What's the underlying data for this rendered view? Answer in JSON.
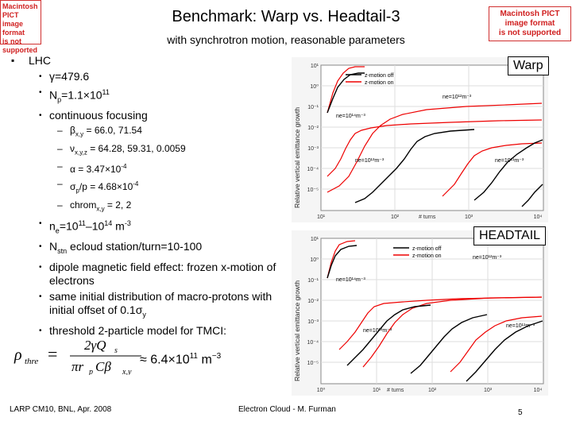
{
  "title": "Benchmark: Warp vs. Headtail-3",
  "subtitle": "with synchrotron motion, reasonable parameters",
  "pict_left": [
    "Macintosh PICT",
    "image format",
    "is not supported"
  ],
  "pict_right": [
    "Macintosh PICT",
    "image format",
    "is not supported"
  ],
  "bullets": {
    "lhc": "LHC",
    "gamma": "γ=479.6",
    "np_prefix": "N",
    "np_sub": "p",
    "np_val": "=1.1×10",
    "np_exp": "11",
    "focusing": "continuous focusing",
    "beta_pre": "β",
    "beta_sub": "x,y",
    "beta_val": " = 66.0, 71.54",
    "nu_pre": "ν",
    "nu_sub": "x,y,z",
    "nu_val": " = 64.28, 59.31, 0.0059",
    "alpha": "α = 3.47×10",
    "alpha_exp": "-4",
    "sigma_pre": "σ",
    "sigma_sub": "p",
    "sigma_val": "/p = 4.68×10",
    "sigma_exp": "-4",
    "chrom_pre": "chrom",
    "chrom_sub": "x,y",
    "chrom_val": " = 2, 2",
    "ne_pre": "n",
    "ne_sub": "e",
    "ne_val": "=10",
    "ne_exp1": "11",
    "ne_dash": "–10",
    "ne_exp2": "14",
    "ne_unit": " m",
    "ne_exp3": "-3",
    "nstn_pre": "N",
    "nstn_sub": "stn",
    "nstn_val": " ecloud station/turn=10-100",
    "dipole": "dipole magnetic field effect: frozen x-motion of electrons",
    "initial_a": "same initial distribution of macro-protons with initial offset of 0.1σ",
    "initial_sub": "y",
    "threshold": "threshold 2-particle model for TMCI:"
  },
  "formula": {
    "lhs": "ρ",
    "lhs_sub": "thre",
    "num": "2γQ",
    "num_sub": "s",
    "den": "πr",
    "den_sub1": "p",
    "den_mid": "Cβ",
    "den_sub2": "x,y",
    "approx": "≈ 6.4×10",
    "approx_exp": "11",
    "approx_unit": " m",
    "approx_unit_exp": "−3"
  },
  "warp_label": "Warp",
  "headtail_label": "HEADTAIL",
  "plots": {
    "ylabel": "Relative vertical emittance growth",
    "xlabel": "# turns",
    "legend_off": "z-motion off",
    "legend_on": "z-motion on",
    "top": {
      "ne_12": "ne=10¹²m⁻³",
      "ne_14": "ne=10¹⁴m⁻³",
      "ne_13": "ne=10¹³m⁻³",
      "ne_11": "ne=10¹¹m⁻³",
      "y_ticks": [
        "10¹",
        "10⁰",
        "10⁻¹",
        "10⁻²",
        "10⁻³",
        "10⁻⁴",
        "10⁻⁵"
      ],
      "x_ticks": [
        "10¹",
        "10²",
        "10³",
        "10⁴"
      ]
    },
    "bottom": {
      "ne_12": "ne=10¹²m⁻³",
      "ne_14": "ne=10¹⁴m⁻³",
      "ne_13": "ne=10¹³m⁻³",
      "ne_11": "ne=10¹¹m⁻³",
      "y_ticks": [
        "10¹",
        "10⁰",
        "10⁻¹",
        "10⁻²",
        "10⁻³",
        "10⁻⁴",
        "10⁻⁵"
      ],
      "x_ticks": [
        "10⁰",
        "10¹",
        "10²",
        "10³",
        "10⁴"
      ]
    }
  },
  "footer": {
    "left": "LARP CM10, BNL, Apr. 2008",
    "center": "Electron Cloud - M. Furman",
    "page": "5"
  }
}
